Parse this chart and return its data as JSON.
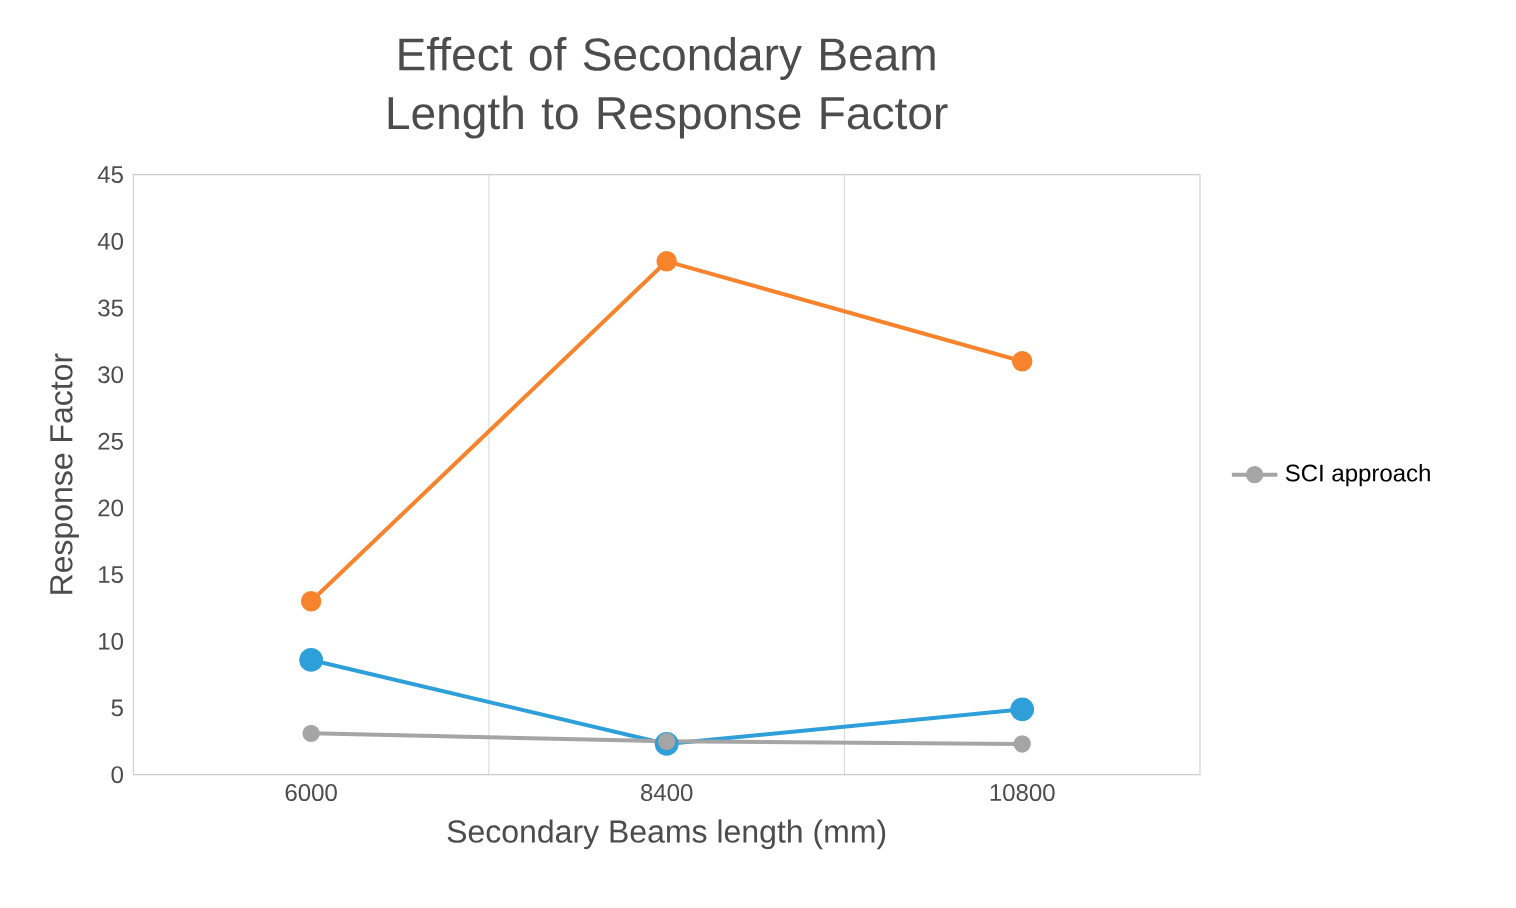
{
  "chart_data": {
    "type": "line",
    "title": "Effect of Secondary Beam Length to Response Factor",
    "xlabel": "Secondary Beams length (mm)",
    "ylabel": "Response Factor",
    "categories": [
      "6000",
      "8400",
      "10800"
    ],
    "series": [
      {
        "color": "#2e9fd9",
        "values": [
          8.6,
          2.3,
          4.9
        ]
      },
      {
        "color": "#f7842d",
        "values": [
          13,
          38.5,
          31
        ]
      },
      {
        "name": "SCI approach",
        "color": "#a5a5a5",
        "values": [
          3.1,
          2.5,
          2.3
        ]
      }
    ],
    "ylim": [
      0,
      45
    ],
    "yticks": [
      0,
      5,
      10,
      15,
      20,
      25,
      30,
      35,
      40,
      45
    ],
    "grid": "x",
    "legend": "right",
    "marker": "circle",
    "line_style": "solid"
  }
}
